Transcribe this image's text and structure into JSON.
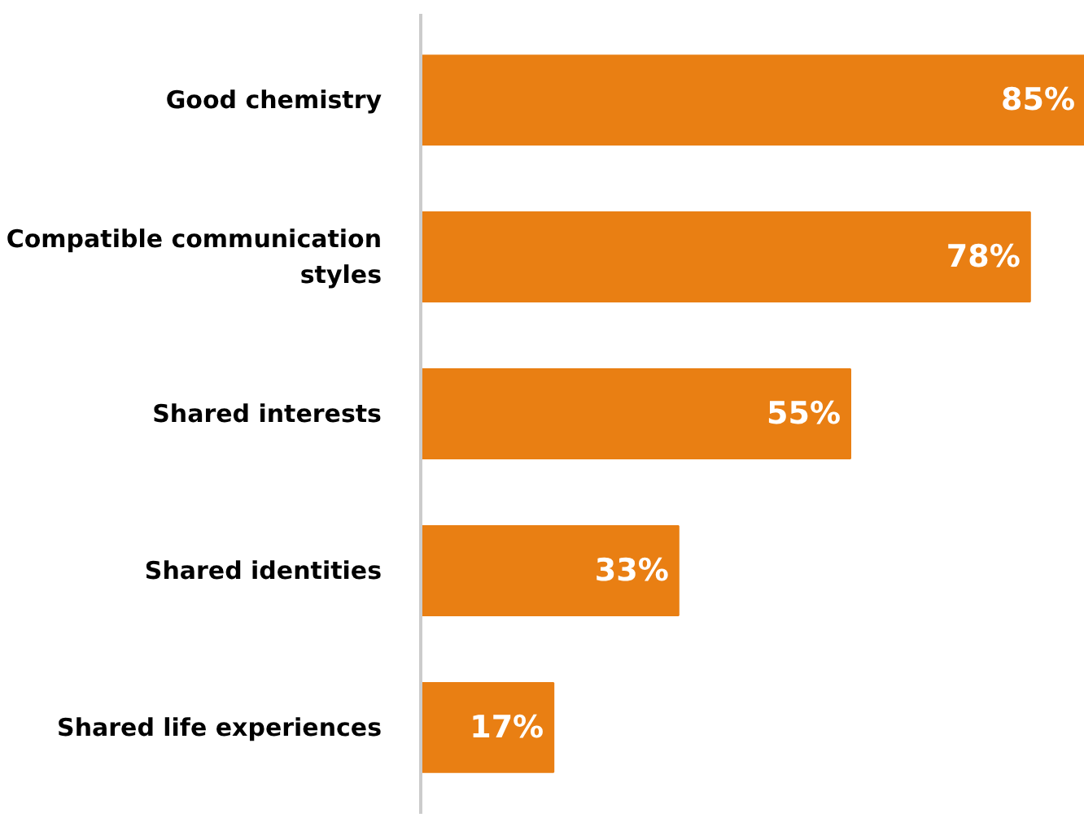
{
  "chart_data": {
    "type": "bar",
    "orientation": "horizontal",
    "categories": [
      "Good chemistry",
      "Compatible communication styles",
      "Shared interests",
      "Shared identities",
      "Shared life experiences"
    ],
    "values": [
      85,
      78,
      55,
      33,
      17
    ],
    "value_labels": [
      "85%",
      "78%",
      "55%",
      "33%",
      "17%"
    ],
    "color": "#e97f13",
    "xlim": [
      0,
      85
    ],
    "tick_labels": "y",
    "grid": false
  }
}
